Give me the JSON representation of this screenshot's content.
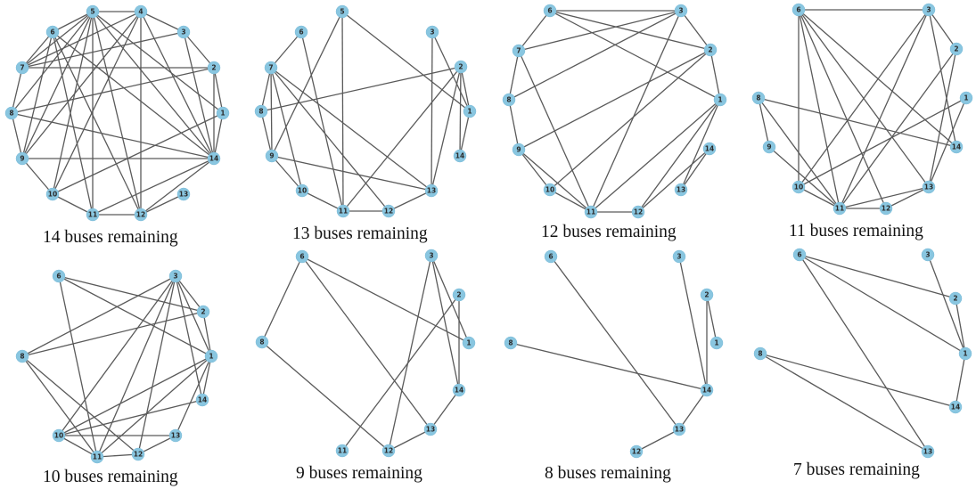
{
  "figure": {
    "panels": [
      {
        "caption": "14 buses remaining",
        "nodes": [
          "5",
          "4",
          "6",
          "3",
          "7",
          "2",
          "8",
          "1",
          "9",
          "14",
          "10",
          "13",
          "11",
          "12"
        ],
        "edges": [
          [
            "5",
            "7"
          ],
          [
            "5",
            "8"
          ],
          [
            "5",
            "9"
          ],
          [
            "5",
            "10"
          ],
          [
            "5",
            "11"
          ],
          [
            "5",
            "12"
          ],
          [
            "5",
            "14"
          ],
          [
            "5",
            "1"
          ],
          [
            "5",
            "6"
          ],
          [
            "5",
            "4"
          ],
          [
            "4",
            "7"
          ],
          [
            "4",
            "9"
          ],
          [
            "4",
            "10"
          ],
          [
            "4",
            "12"
          ],
          [
            "4",
            "14"
          ],
          [
            "4",
            "3"
          ],
          [
            "6",
            "7"
          ],
          [
            "6",
            "11"
          ],
          [
            "6",
            "12"
          ],
          [
            "6",
            "14"
          ],
          [
            "6",
            "9"
          ],
          [
            "7",
            "3"
          ],
          [
            "7",
            "2"
          ],
          [
            "3",
            "14"
          ],
          [
            "3",
            "2"
          ],
          [
            "8",
            "2"
          ],
          [
            "8",
            "14"
          ],
          [
            "8",
            "9"
          ],
          [
            "2",
            "1"
          ],
          [
            "2",
            "14"
          ],
          [
            "1",
            "10"
          ],
          [
            "1",
            "14"
          ],
          [
            "9",
            "14"
          ],
          [
            "9",
            "10"
          ],
          [
            "10",
            "11"
          ],
          [
            "11",
            "12"
          ],
          [
            "11",
            "14"
          ],
          [
            "12",
            "13"
          ],
          [
            "12",
            "14"
          ],
          [
            "7",
            "8"
          ]
        ]
      },
      {
        "caption": "13 buses remaining",
        "nodes": [
          "5",
          "6",
          "3",
          "7",
          "2",
          "8",
          "1",
          "9",
          "14",
          "10",
          "13",
          "11",
          "12"
        ],
        "edges": [
          [
            "5",
            "9"
          ],
          [
            "5",
            "11"
          ],
          [
            "5",
            "1"
          ],
          [
            "6",
            "7"
          ],
          [
            "6",
            "11"
          ],
          [
            "7",
            "8"
          ],
          [
            "7",
            "10"
          ],
          [
            "7",
            "12"
          ],
          [
            "7",
            "13"
          ],
          [
            "7",
            "9"
          ],
          [
            "8",
            "2"
          ],
          [
            "8",
            "9"
          ],
          [
            "3",
            "1"
          ],
          [
            "3",
            "13"
          ],
          [
            "2",
            "11"
          ],
          [
            "2",
            "13"
          ],
          [
            "2",
            "14"
          ],
          [
            "1",
            "14"
          ],
          [
            "9",
            "13"
          ],
          [
            "9",
            "10"
          ],
          [
            "10",
            "11"
          ],
          [
            "11",
            "12"
          ],
          [
            "12",
            "13"
          ],
          [
            "1",
            "2"
          ]
        ]
      },
      {
        "caption": "12 buses remaining",
        "nodes": [
          "6",
          "3",
          "7",
          "2",
          "8",
          "1",
          "9",
          "14",
          "10",
          "13",
          "11",
          "12"
        ],
        "edges": [
          [
            "6",
            "3"
          ],
          [
            "6",
            "2"
          ],
          [
            "6",
            "1"
          ],
          [
            "6",
            "7"
          ],
          [
            "3",
            "7"
          ],
          [
            "3",
            "2"
          ],
          [
            "3",
            "11"
          ],
          [
            "2",
            "9"
          ],
          [
            "2",
            "10"
          ],
          [
            "2",
            "1"
          ],
          [
            "1",
            "12"
          ],
          [
            "1",
            "13"
          ],
          [
            "1",
            "11"
          ],
          [
            "7",
            "11"
          ],
          [
            "7",
            "8"
          ],
          [
            "8",
            "3"
          ],
          [
            "8",
            "9"
          ],
          [
            "9",
            "10"
          ],
          [
            "9",
            "11"
          ],
          [
            "10",
            "11"
          ],
          [
            "11",
            "12"
          ],
          [
            "12",
            "14"
          ],
          [
            "13",
            "14"
          ]
        ]
      },
      {
        "caption": "11 buses remaining",
        "nodes": [
          "6",
          "3",
          "2",
          "8",
          "1",
          "9",
          "14",
          "10",
          "13",
          "11",
          "12"
        ],
        "edges": [
          [
            "6",
            "3"
          ],
          [
            "6",
            "10"
          ],
          [
            "6",
            "11"
          ],
          [
            "6",
            "12"
          ],
          [
            "6",
            "14"
          ],
          [
            "6",
            "13"
          ],
          [
            "3",
            "10"
          ],
          [
            "3",
            "11"
          ],
          [
            "3",
            "14"
          ],
          [
            "3",
            "2"
          ],
          [
            "2",
            "13"
          ],
          [
            "2",
            "11"
          ],
          [
            "8",
            "14"
          ],
          [
            "8",
            "11"
          ],
          [
            "8",
            "9"
          ],
          [
            "1",
            "13"
          ],
          [
            "1",
            "10"
          ],
          [
            "9",
            "11"
          ],
          [
            "10",
            "11"
          ],
          [
            "11",
            "12"
          ],
          [
            "11",
            "13"
          ],
          [
            "12",
            "13"
          ]
        ]
      },
      {
        "caption": "10 buses remaining",
        "nodes": [
          "6",
          "3",
          "2",
          "8",
          "1",
          "14",
          "10",
          "13",
          "11",
          "12"
        ],
        "edges": [
          [
            "6",
            "1"
          ],
          [
            "6",
            "2"
          ],
          [
            "6",
            "11"
          ],
          [
            "3",
            "8"
          ],
          [
            "3",
            "11"
          ],
          [
            "3",
            "10"
          ],
          [
            "3",
            "12"
          ],
          [
            "3",
            "1"
          ],
          [
            "3",
            "14"
          ],
          [
            "3",
            "2"
          ],
          [
            "2",
            "8"
          ],
          [
            "2",
            "1"
          ],
          [
            "8",
            "11"
          ],
          [
            "8",
            "12"
          ],
          [
            "1",
            "10"
          ],
          [
            "1",
            "11"
          ],
          [
            "1",
            "13"
          ],
          [
            "1",
            "14"
          ],
          [
            "14",
            "10"
          ],
          [
            "10",
            "11"
          ],
          [
            "10",
            "13"
          ],
          [
            "11",
            "12"
          ],
          [
            "12",
            "13"
          ]
        ]
      },
      {
        "caption": "9 buses remaining",
        "nodes": [
          "6",
          "3",
          "2",
          "8",
          "1",
          "14",
          "13",
          "11",
          "12"
        ],
        "edges": [
          [
            "6",
            "8"
          ],
          [
            "6",
            "1"
          ],
          [
            "6",
            "13"
          ],
          [
            "3",
            "12"
          ],
          [
            "3",
            "1"
          ],
          [
            "3",
            "14"
          ],
          [
            "2",
            "11"
          ],
          [
            "2",
            "14"
          ],
          [
            "8",
            "12"
          ],
          [
            "12",
            "13"
          ],
          [
            "13",
            "14"
          ]
        ]
      },
      {
        "caption": "8 buses remaining",
        "nodes": [
          "6",
          "3",
          "2",
          "8",
          "1",
          "14",
          "13",
          "12"
        ],
        "edges": [
          [
            "6",
            "13"
          ],
          [
            "3",
            "14"
          ],
          [
            "2",
            "14"
          ],
          [
            "2",
            "1"
          ],
          [
            "8",
            "14"
          ],
          [
            "14",
            "13"
          ],
          [
            "13",
            "12"
          ]
        ]
      },
      {
        "caption": "7 buses remaining",
        "nodes": [
          "6",
          "3",
          "2",
          "8",
          "1",
          "14",
          "13"
        ],
        "edges": [
          [
            "6",
            "2"
          ],
          [
            "6",
            "1"
          ],
          [
            "6",
            "13"
          ],
          [
            "3",
            "1"
          ],
          [
            "2",
            "1"
          ],
          [
            "8",
            "14"
          ],
          [
            "8",
            "13"
          ],
          [
            "1",
            "14"
          ]
        ]
      }
    ]
  }
}
